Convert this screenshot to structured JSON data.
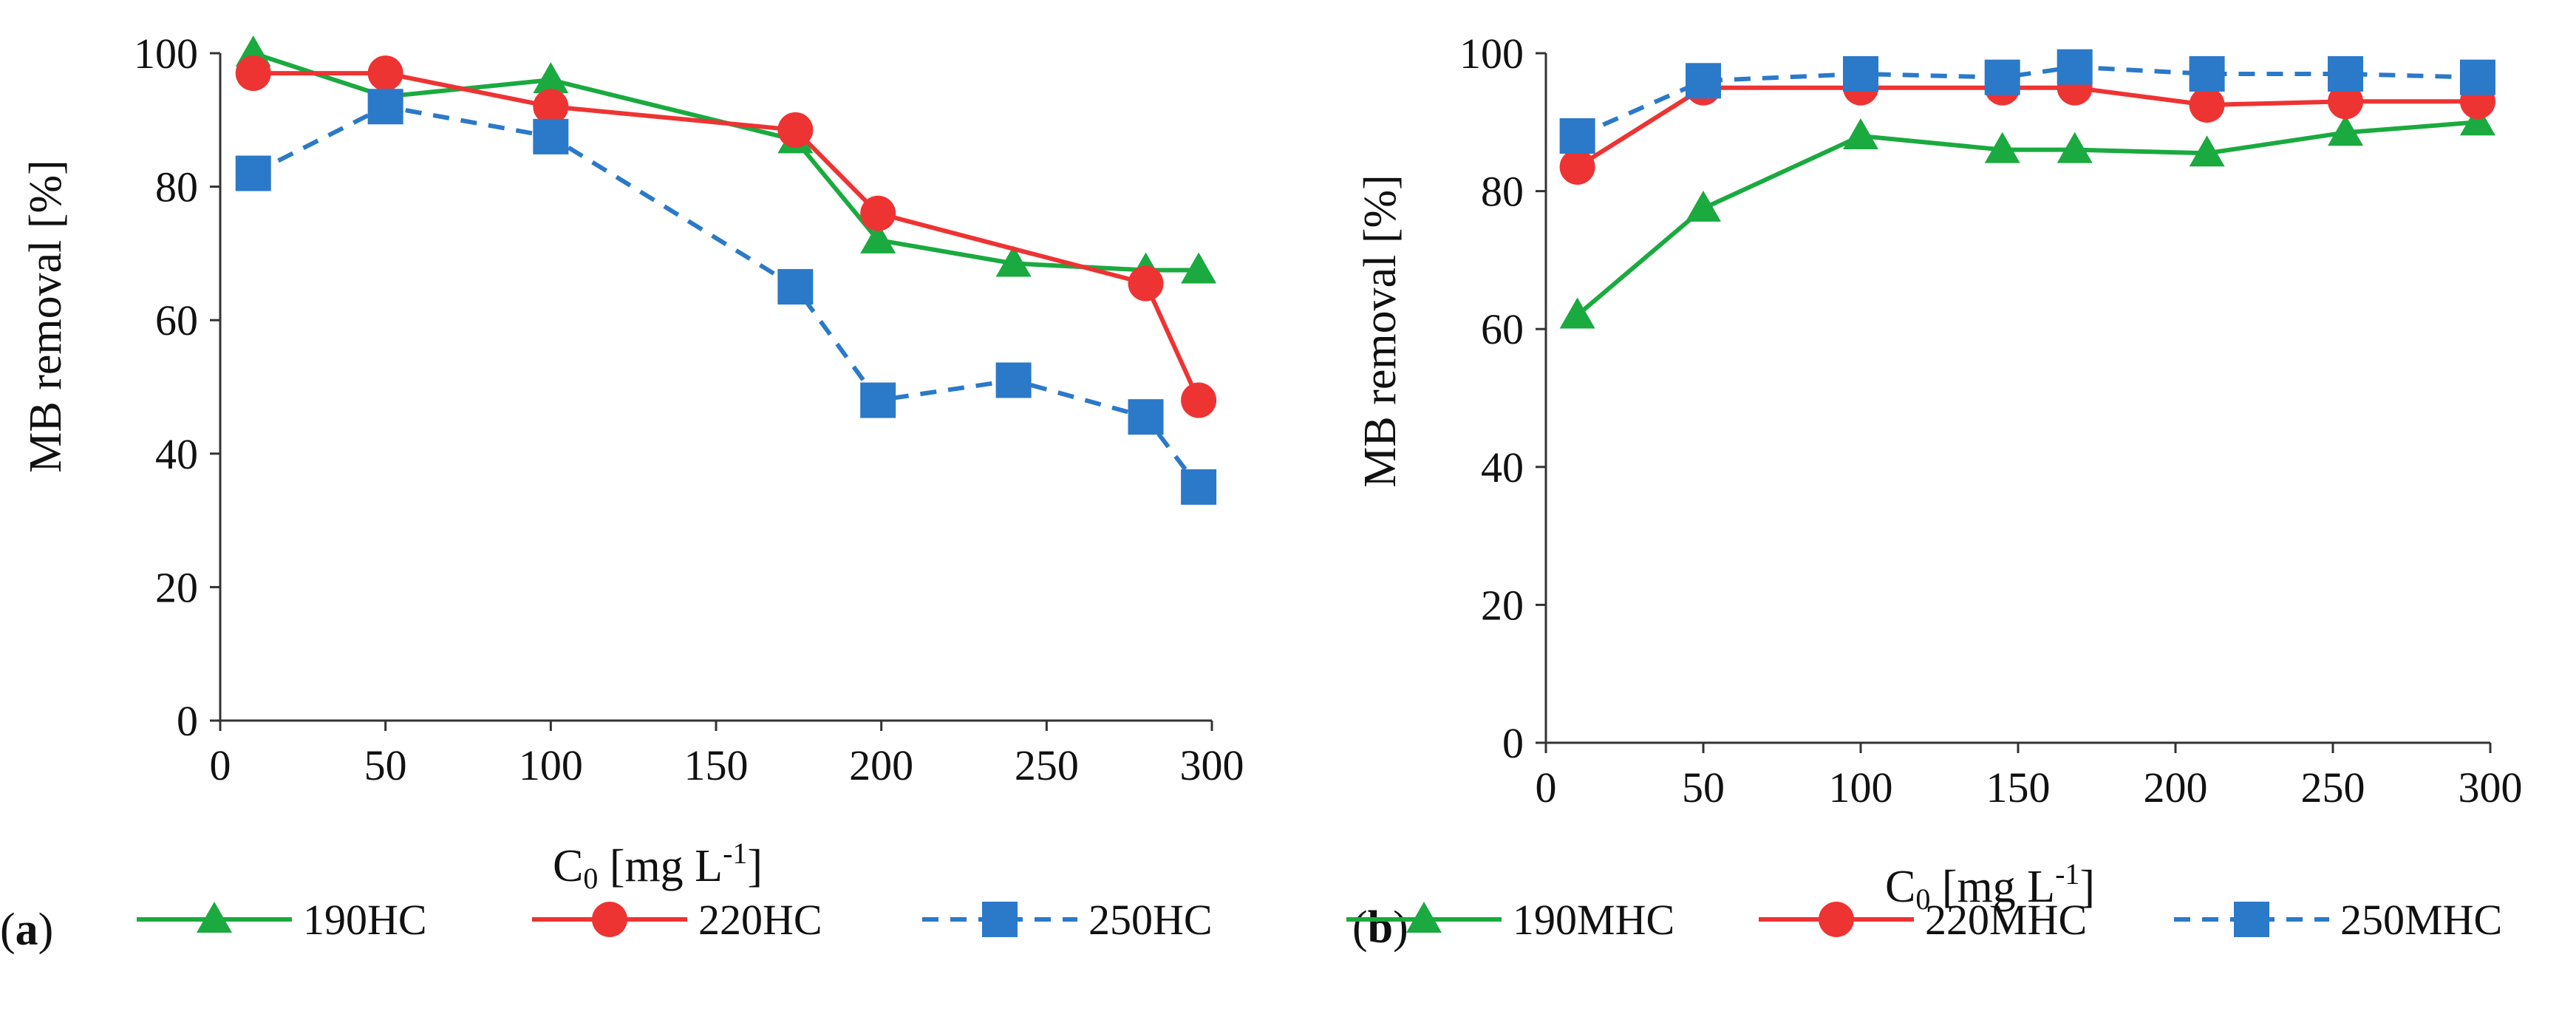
{
  "chart_data": [
    {
      "type": "line",
      "panel_label": "(a)",
      "panel_label_open": "(",
      "panel_label_letter": "a",
      "panel_label_close": ")",
      "xlabel": "C0 [mg L-1]",
      "xlabel_main": "C",
      "xlabel_sub": "0",
      "xlabel_unit": " [mg L",
      "xlabel_sup": "-1",
      "xlabel_close": "]",
      "ylabel": "MB removal [%]",
      "xlim": [
        0,
        300
      ],
      "ylim": [
        0,
        100
      ],
      "x_ticks": [
        "0",
        "50",
        "100",
        "150",
        "200",
        "250",
        "300"
      ],
      "y_ticks": [
        "0",
        "20",
        "40",
        "60",
        "80",
        "100"
      ],
      "grid": false,
      "legend_position": "bottom",
      "series": [
        {
          "name": "190HC",
          "color": "#1aaa3f",
          "marker": "triangle",
          "dash": "solid",
          "x": [
            10,
            50,
            100,
            174,
            199,
            240,
            280,
            296
          ],
          "y": [
            100,
            93.5,
            96,
            87,
            72,
            68.5,
            67.5,
            67.5
          ]
        },
        {
          "name": "220HC",
          "color": "#ee3333",
          "marker": "circle",
          "dash": "solid",
          "x": [
            10,
            50,
            100,
            174,
            199,
            280,
            296
          ],
          "y": [
            97,
            97,
            92,
            88.5,
            76,
            65.5,
            48
          ]
        },
        {
          "name": "250HC",
          "color": "#2b79c9",
          "marker": "square",
          "dash": "dashed",
          "x": [
            10,
            50,
            100,
            174,
            199,
            240,
            280,
            296
          ],
          "y": [
            82,
            92,
            87.5,
            65,
            48,
            51,
            45.5,
            35
          ]
        }
      ]
    },
    {
      "type": "line",
      "panel_label": "(b)",
      "panel_label_open": "(",
      "panel_label_letter": "b",
      "panel_label_close": ")",
      "xlabel": "C0 [mg L-1]",
      "xlabel_main": "C",
      "xlabel_sub": "0",
      "xlabel_unit": " [mg L",
      "xlabel_sup": "-1",
      "xlabel_close": "]",
      "ylabel": "MB removal [%]",
      "xlim": [
        0,
        300
      ],
      "ylim": [
        0,
        100
      ],
      "x_ticks": [
        "0",
        "50",
        "100",
        "150",
        "200",
        "250",
        "300"
      ],
      "y_ticks": [
        "0",
        "20",
        "40",
        "60",
        "80",
        "100"
      ],
      "grid": false,
      "legend_position": "bottom",
      "series": [
        {
          "name": "190MHC",
          "color": "#1aaa3f",
          "marker": "triangle",
          "dash": "solid",
          "x": [
            10,
            50,
            100,
            145,
            168,
            210,
            254,
            296
          ],
          "y": [
            62,
            77.5,
            88,
            86,
            86,
            85.5,
            88.5,
            90
          ]
        },
        {
          "name": "220MHC",
          "color": "#ee3333",
          "marker": "circle",
          "dash": "solid",
          "x": [
            10,
            50,
            100,
            145,
            168,
            210,
            254,
            296
          ],
          "y": [
            83.5,
            95,
            95,
            95,
            95,
            92.5,
            93,
            93
          ]
        },
        {
          "name": "250MHC",
          "color": "#2b79c9",
          "marker": "square",
          "dash": "dashed",
          "x": [
            10,
            50,
            100,
            145,
            168,
            210,
            254,
            296
          ],
          "y": [
            88,
            96,
            97,
            96.5,
            98,
            97,
            97,
            96.5
          ]
        }
      ]
    }
  ]
}
